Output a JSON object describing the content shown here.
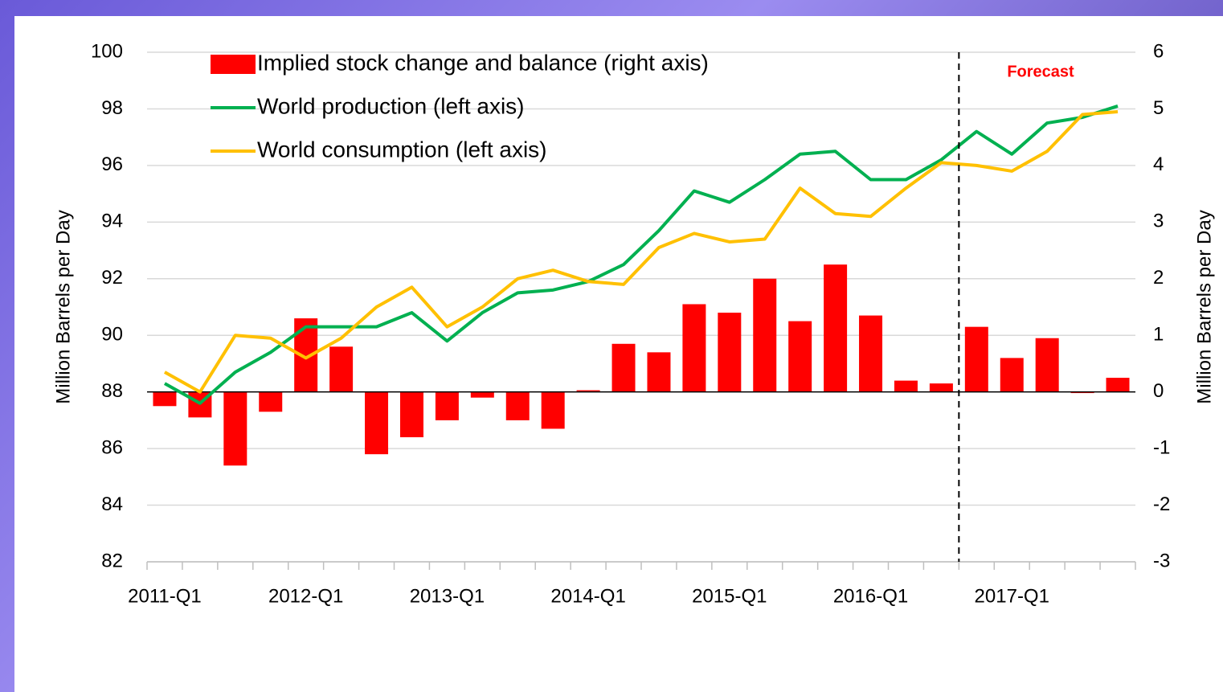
{
  "chart_data": {
    "type": "bar_line",
    "y_label": "Million Barrels per Day",
    "y2_label": "Million Barrels per Day",
    "annotation": "Forecast",
    "categories": [
      "2011-Q1",
      null,
      null,
      null,
      "2012-Q1",
      null,
      null,
      null,
      "2013-Q1",
      null,
      null,
      null,
      "2014-Q1",
      null,
      null,
      null,
      "2015-Q1",
      null,
      null,
      null,
      "2016-Q1",
      null,
      null,
      null,
      "2017-Q1",
      null,
      null,
      null
    ],
    "ylim": [
      82,
      100
    ],
    "yticks": [
      82,
      84,
      86,
      88,
      90,
      92,
      94,
      96,
      98,
      100
    ],
    "y2lim": [
      -3,
      6
    ],
    "y2ticks": [
      -3,
      -2,
      -1,
      0,
      1,
      2,
      3,
      4,
      5,
      6
    ],
    "grid": true,
    "series": [
      {
        "name": "Implied stock change and balance (right axis)",
        "color": "#ff0000",
        "kind": "bar",
        "axis": "y2",
        "values": [
          -0.25,
          -0.45,
          -1.3,
          -0.35,
          1.3,
          0.8,
          -1.1,
          -0.8,
          -0.5,
          -0.1,
          -0.5,
          -0.65,
          0.03,
          0.85,
          0.7,
          1.55,
          1.4,
          2.0,
          1.25,
          2.25,
          1.35,
          0.2,
          0.15,
          1.15,
          0.6,
          0.95,
          -0.02,
          0.25
        ]
      },
      {
        "name": "World production (left axis)",
        "color": "#00b050",
        "kind": "line",
        "values": [
          88.3,
          87.6,
          88.7,
          89.4,
          90.3,
          90.3,
          90.3,
          90.8,
          89.8,
          90.8,
          91.5,
          91.6,
          91.9,
          92.5,
          93.7,
          95.1,
          94.7,
          95.5,
          96.4,
          96.5,
          95.5,
          95.5,
          96.2,
          97.2,
          96.4,
          97.5,
          97.7,
          98.1
        ]
      },
      {
        "name": "World consumption (left axis)",
        "color": "#ffc000",
        "kind": "line",
        "values": [
          88.7,
          88.0,
          90.0,
          89.9,
          89.2,
          89.9,
          91.0,
          91.7,
          90.3,
          91.0,
          92.0,
          92.3,
          91.9,
          91.8,
          93.1,
          93.6,
          93.3,
          93.4,
          95.2,
          94.3,
          94.2,
          95.2,
          96.1,
          96.0,
          95.8,
          96.5,
          97.8,
          97.9
        ]
      }
    ]
  }
}
